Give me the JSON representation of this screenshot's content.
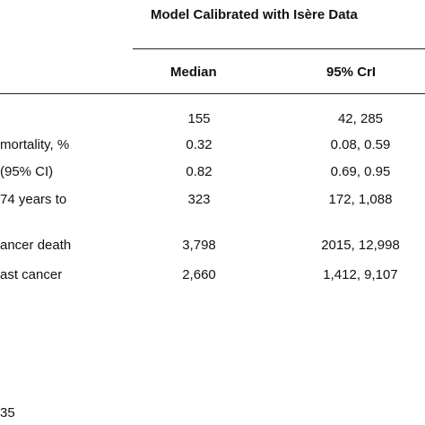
{
  "table": {
    "group_header": "Model Calibrated with Isère Data",
    "columns": [
      "Median",
      "95% CrI"
    ],
    "rows": [
      {
        "label": "",
        "median": "155",
        "crl": "42, 285"
      },
      {
        "label": " mortality, %",
        "median": "0.32",
        "crl": "0.08, 0.59"
      },
      {
        "label": "(95% CI)",
        "median": "0.82",
        "crl": "0.69, 0.95"
      },
      {
        "label": "74 years to",
        "median": "323",
        "crl": "172, 1,088"
      },
      {
        "label": "ancer death",
        "median": "3,798",
        "crl": "2015, 12,998"
      },
      {
        "label": "ast cancer",
        "median": "2,660",
        "crl": "1,412, 9,107"
      }
    ]
  },
  "footnote": "35"
}
